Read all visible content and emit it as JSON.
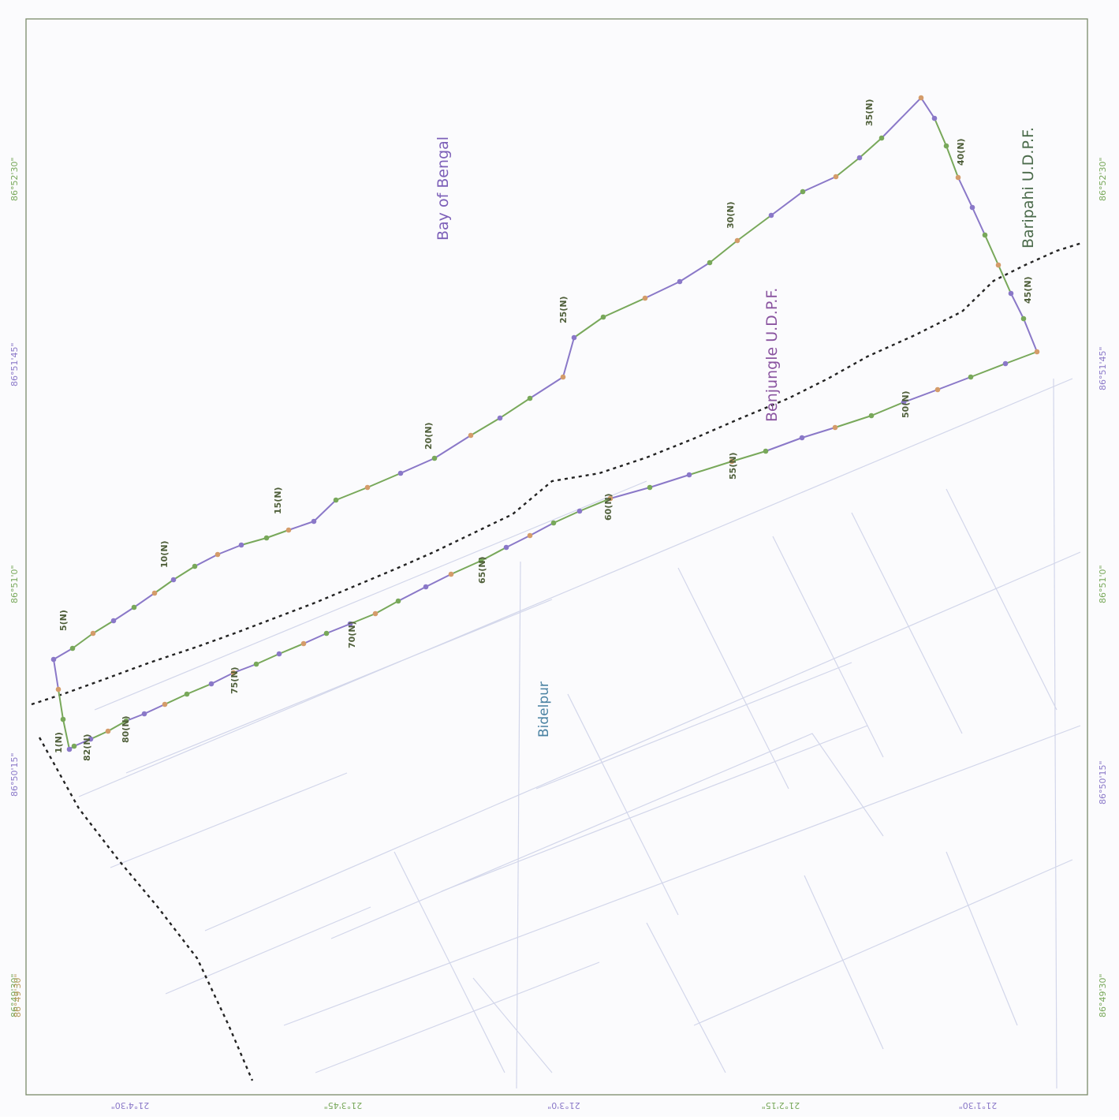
{
  "map": {
    "top_left_value": "86°49'30\"",
    "colors": {
      "frame": "#7a8a6a",
      "boundary_a": "#8a78c8",
      "boundary_b": "#78a85a",
      "dotted": "#222222",
      "faint_roads": "#c8cde6",
      "pt_label": "#4f5f3a",
      "region_bay": "#7c5fb8",
      "region_benjungle": "#8a54a0",
      "region_benjungle_accent": "#5a9a4a",
      "region_baripahi": "#4a6a4a",
      "region_bidelpur": "#4a82a2"
    },
    "left_ticks": [
      "86°49'30\"",
      "86°50'15\"",
      "86°51'0\"",
      "86°51'45\"",
      "86°52'30\""
    ],
    "right_ticks": [
      "86°49'30\"",
      "86°50'15\"",
      "86°51'0\"",
      "86°51'45\"",
      "86°52'30\""
    ],
    "bottom_ticks": [
      "21°4'30\"",
      "21°3'45\"",
      "21°3'0\"",
      "21°2'15\"",
      "21°1'30\""
    ],
    "regions": {
      "bay": "Bay of Bengal",
      "benjungle": "Benjungle U.D.P.F.",
      "baripahi": "Baripahi U.D.P.F.",
      "bidelpur": "Bidelpur"
    },
    "boundary_labels": [
      "1(N)",
      "5(N)",
      "10(N)",
      "15(N)",
      "20(N)",
      "25(N)",
      "30(N)",
      "35(N)",
      "40(N)",
      "45(N)",
      "50(N)",
      "55(N)",
      "60(N)",
      "65(N)",
      "70(N)",
      "75(N)",
      "80(N)",
      "82(N)"
    ]
  }
}
